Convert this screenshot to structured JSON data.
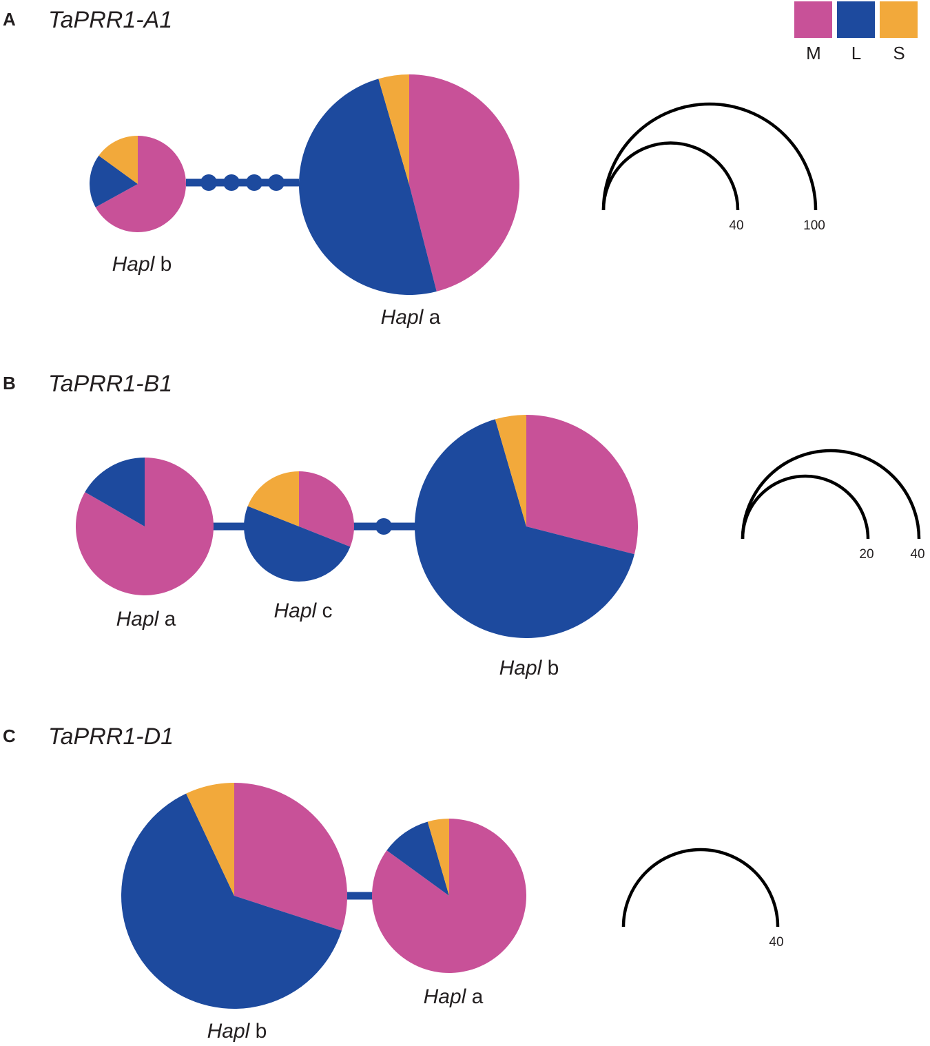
{
  "legend": [
    {
      "label": "M",
      "color": "#c85198"
    },
    {
      "label": "L",
      "color": "#1d4a9e"
    },
    {
      "label": "S",
      "color": "#f2a93b"
    }
  ],
  "panels": [
    {
      "letter": "A",
      "gene": "TaPRR1-A1",
      "haplotypes": [
        {
          "prefix": "Hapl",
          "suffix": "b",
          "shares": [
            0.67,
            0.18,
            0.15
          ]
        },
        {
          "prefix": "Hapl",
          "suffix": "a",
          "shares": [
            0.46,
            0.495,
            0.045
          ]
        }
      ],
      "scale": [
        "40",
        "100"
      ]
    },
    {
      "letter": "B",
      "gene": "TaPRR1-B1",
      "haplotypes": [
        {
          "prefix": "Hapl",
          "suffix": "a",
          "shares": [
            0.833,
            0.167,
            0
          ]
        },
        {
          "prefix": "Hapl",
          "suffix": "c",
          "shares": [
            0.31,
            0.5,
            0.19
          ]
        },
        {
          "prefix": "Hapl",
          "suffix": "b",
          "shares": [
            0.29,
            0.665,
            0.045
          ]
        }
      ],
      "scale": [
        "20",
        "40"
      ]
    },
    {
      "letter": "C",
      "gene": "TaPRR1-D1",
      "haplotypes": [
        {
          "prefix": "Hapl",
          "suffix": "b",
          "shares": [
            0.3,
            0.63,
            0.07
          ]
        },
        {
          "prefix": "Hapl",
          "suffix": "a",
          "shares": [
            0.85,
            0.105,
            0.045
          ]
        }
      ],
      "scale": [
        "40"
      ]
    }
  ]
}
